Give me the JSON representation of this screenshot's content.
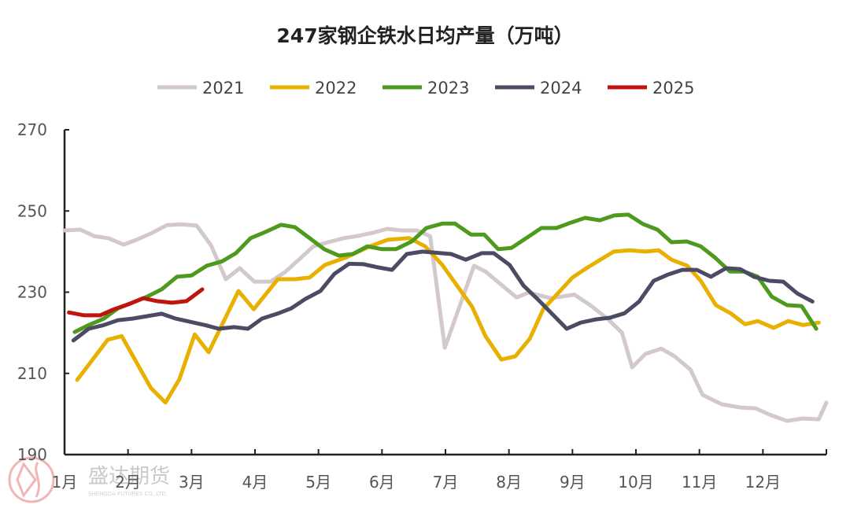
{
  "chart_data": {
    "type": "line",
    "title": "247家钢企铁水日均产量（万吨）",
    "xlabel": "",
    "ylabel": "",
    "ylim": [
      190,
      270
    ],
    "yticks": [
      190,
      210,
      230,
      250,
      270
    ],
    "xlim": [
      1,
      13
    ],
    "x_tick_labels": [
      "1月",
      "2月",
      "3月",
      "4月",
      "5月",
      "6月",
      "7月",
      "8月",
      "9月",
      "10月",
      "11月",
      "12月"
    ],
    "grid": false,
    "legend": "top",
    "series": [
      {
        "name": "2021",
        "color": "#d3c8cc",
        "points": [
          [
            1.0,
            245.2
          ],
          [
            1.25,
            245.4
          ],
          [
            1.47,
            243.8
          ],
          [
            1.69,
            243.3
          ],
          [
            1.93,
            241.7
          ],
          [
            2.15,
            243
          ],
          [
            2.38,
            244.6
          ],
          [
            2.61,
            246.5
          ],
          [
            2.83,
            246.7
          ],
          [
            3.08,
            246.4
          ],
          [
            3.31,
            241.5
          ],
          [
            3.54,
            233.2
          ],
          [
            3.76,
            235.9
          ],
          [
            3.99,
            232.6
          ],
          [
            4.24,
            232.6
          ],
          [
            4.47,
            234.9
          ],
          [
            4.69,
            238
          ],
          [
            4.92,
            241.3
          ],
          [
            5.15,
            242.3
          ],
          [
            5.4,
            243.3
          ],
          [
            5.6,
            243.8
          ],
          [
            5.85,
            244.6
          ],
          [
            6.08,
            245.6
          ],
          [
            6.31,
            245.2
          ],
          [
            6.55,
            245.2
          ],
          [
            6.76,
            243.8
          ],
          [
            6.99,
            216.3
          ],
          [
            7.45,
            236.5
          ],
          [
            7.63,
            235.1
          ],
          [
            8.12,
            228.7
          ],
          [
            8.31,
            229.9
          ],
          [
            8.66,
            228.5
          ],
          [
            9.03,
            229.4
          ],
          [
            9.28,
            226.8
          ],
          [
            9.55,
            223.5
          ],
          [
            9.78,
            220
          ],
          [
            9.94,
            211.5
          ],
          [
            10.15,
            214.8
          ],
          [
            10.4,
            216.1
          ],
          [
            10.61,
            214.2
          ],
          [
            10.86,
            210.9
          ],
          [
            11.05,
            204.7
          ],
          [
            11.35,
            202.4
          ],
          [
            11.64,
            201.6
          ],
          [
            11.88,
            201.4
          ],
          [
            12.11,
            199.8
          ],
          [
            12.38,
            198.3
          ],
          [
            12.63,
            198.9
          ],
          [
            12.88,
            198.7
          ],
          [
            13.0,
            202.8
          ]
        ]
      },
      {
        "name": "2022",
        "color": "#e8b000",
        "points": [
          [
            1.2,
            208.4
          ],
          [
            1.68,
            218.3
          ],
          [
            1.9,
            219.2
          ],
          [
            2.36,
            206.4
          ],
          [
            2.59,
            202.8
          ],
          [
            2.81,
            208.6
          ],
          [
            3.05,
            219.6
          ],
          [
            3.27,
            215.2
          ],
          [
            3.74,
            230.3
          ],
          [
            3.98,
            225.8
          ],
          [
            4.36,
            233.2
          ],
          [
            4.63,
            233.2
          ],
          [
            4.86,
            233.6
          ],
          [
            5.1,
            236.7
          ],
          [
            5.44,
            238.6
          ],
          [
            5.81,
            241.3
          ],
          [
            6.09,
            242.9
          ],
          [
            6.43,
            243.3
          ],
          [
            6.68,
            241.3
          ],
          [
            6.95,
            236.7
          ],
          [
            7.42,
            226.4
          ],
          [
            7.63,
            219.2
          ],
          [
            7.88,
            213.4
          ],
          [
            8.1,
            214.2
          ],
          [
            8.33,
            218.6
          ],
          [
            8.54,
            225.8
          ],
          [
            9.0,
            233.6
          ],
          [
            9.24,
            236.1
          ],
          [
            9.65,
            240
          ],
          [
            9.9,
            240.3
          ],
          [
            10.15,
            240
          ],
          [
            10.36,
            240.3
          ],
          [
            10.56,
            238
          ],
          [
            10.81,
            236.5
          ],
          [
            11.02,
            232.8
          ],
          [
            11.26,
            226.8
          ],
          [
            11.49,
            224.8
          ],
          [
            11.72,
            222.1
          ],
          [
            11.92,
            222.9
          ],
          [
            12.17,
            221.2
          ],
          [
            12.4,
            222.9
          ],
          [
            12.63,
            221.9
          ],
          [
            12.88,
            222.5
          ]
        ]
      },
      {
        "name": "2023",
        "color": "#4e9a1e",
        "points": [
          [
            1.16,
            220.2
          ],
          [
            1.38,
            221.9
          ],
          [
            1.62,
            223.5
          ],
          [
            1.84,
            226
          ],
          [
            2.07,
            227.4
          ],
          [
            2.3,
            228.9
          ],
          [
            2.53,
            230.7
          ],
          [
            2.77,
            233.8
          ],
          [
            3.0,
            234.1
          ],
          [
            3.24,
            236.5
          ],
          [
            3.48,
            237.6
          ],
          [
            3.7,
            239.6
          ],
          [
            3.93,
            243.3
          ],
          [
            4.16,
            244.8
          ],
          [
            4.41,
            246.6
          ],
          [
            4.63,
            246
          ],
          [
            4.86,
            243.3
          ],
          [
            5.09,
            240.6
          ],
          [
            5.32,
            239
          ],
          [
            5.54,
            239.4
          ],
          [
            5.77,
            241.3
          ],
          [
            6.0,
            240.6
          ],
          [
            6.22,
            240.6
          ],
          [
            6.47,
            242.5
          ],
          [
            6.7,
            245.8
          ],
          [
            6.95,
            246.9
          ],
          [
            7.15,
            246.9
          ],
          [
            7.4,
            244.2
          ],
          [
            7.61,
            244.2
          ],
          [
            7.83,
            240.6
          ],
          [
            8.04,
            240.9
          ],
          [
            8.29,
            243.5
          ],
          [
            8.51,
            245.8
          ],
          [
            8.75,
            245.8
          ],
          [
            8.97,
            247.1
          ],
          [
            9.2,
            248.3
          ],
          [
            9.43,
            247.7
          ],
          [
            9.66,
            248.9
          ],
          [
            9.88,
            249.1
          ],
          [
            10.11,
            246.8
          ],
          [
            10.34,
            245.4
          ],
          [
            10.56,
            242.3
          ],
          [
            10.8,
            242.5
          ],
          [
            11.02,
            241.3
          ],
          [
            11.24,
            238.6
          ],
          [
            11.48,
            235.1
          ],
          [
            11.7,
            235.1
          ],
          [
            11.92,
            233.8
          ],
          [
            12.14,
            228.9
          ],
          [
            12.38,
            226.8
          ],
          [
            12.61,
            226.6
          ],
          [
            12.84,
            221
          ]
        ]
      },
      {
        "name": "2024",
        "color": "#4b4b63",
        "points": [
          [
            1.14,
            218.1
          ],
          [
            1.38,
            221
          ],
          [
            1.62,
            221.9
          ],
          [
            1.84,
            223.1
          ],
          [
            2.07,
            223.5
          ],
          [
            2.3,
            224.1
          ],
          [
            2.53,
            224.7
          ],
          [
            2.75,
            223.5
          ],
          [
            2.98,
            222.7
          ],
          [
            3.21,
            221.9
          ],
          [
            3.43,
            221
          ],
          [
            3.67,
            221.4
          ],
          [
            3.89,
            221
          ],
          [
            4.11,
            223.5
          ],
          [
            4.35,
            224.7
          ],
          [
            4.57,
            226
          ],
          [
            4.79,
            228.3
          ],
          [
            5.03,
            230.3
          ],
          [
            5.25,
            234.5
          ],
          [
            5.48,
            237
          ],
          [
            5.71,
            236.9
          ],
          [
            5.94,
            236.1
          ],
          [
            6.16,
            235.5
          ],
          [
            6.39,
            239.4
          ],
          [
            6.64,
            240
          ],
          [
            7.09,
            239.4
          ],
          [
            7.32,
            238
          ],
          [
            7.57,
            239.6
          ],
          [
            7.76,
            239.6
          ],
          [
            8.01,
            236.7
          ],
          [
            8.23,
            231.6
          ],
          [
            8.45,
            228.3
          ],
          [
            8.69,
            224.5
          ],
          [
            8.91,
            221
          ],
          [
            9.13,
            222.5
          ],
          [
            9.37,
            223.3
          ],
          [
            9.59,
            223.7
          ],
          [
            9.82,
            224.8
          ],
          [
            10.05,
            227.7
          ],
          [
            10.28,
            232.8
          ],
          [
            10.5,
            234.3
          ],
          [
            10.73,
            235.5
          ],
          [
            10.96,
            235.5
          ],
          [
            11.18,
            233.8
          ],
          [
            11.42,
            235.9
          ],
          [
            11.64,
            235.7
          ],
          [
            11.86,
            233.8
          ],
          [
            12.1,
            232.8
          ],
          [
            12.32,
            232.6
          ],
          [
            12.54,
            229.7
          ],
          [
            12.78,
            227.7
          ]
        ]
      },
      {
        "name": "2025",
        "color": "#c0150e",
        "points": [
          [
            1.07,
            225.0
          ],
          [
            1.31,
            224.3
          ],
          [
            1.56,
            224.3
          ],
          [
            1.78,
            225.8
          ],
          [
            2.0,
            227
          ],
          [
            2.24,
            228.5
          ],
          [
            2.46,
            227.8
          ],
          [
            2.69,
            227.4
          ],
          [
            2.92,
            227.8
          ],
          [
            3.17,
            230.7
          ]
        ]
      }
    ]
  },
  "watermark": {
    "text": "盛达期货",
    "subtext": "SHENGDA FUTURES CO.,LTD."
  }
}
